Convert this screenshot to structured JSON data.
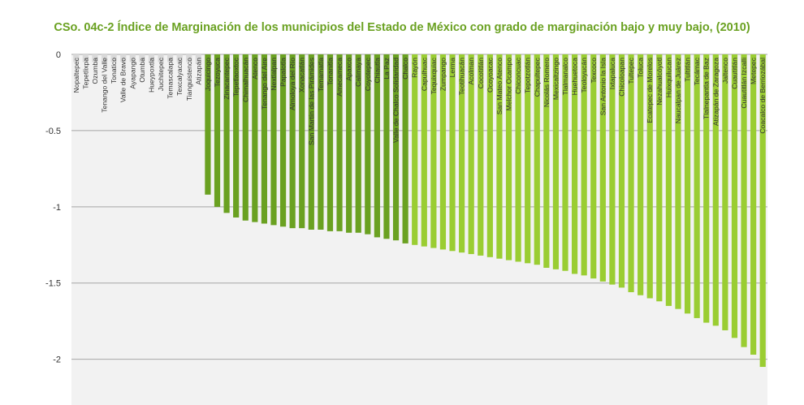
{
  "chart_data": {
    "type": "bar",
    "title": "CSo. 04c-2 Índice de Marginación de los municipios del Estado de México con grado de marginación bajo y muy bajo, (2010)",
    "xlabel": "",
    "ylabel": "",
    "ylim": [
      -2.3,
      0
    ],
    "yticks": [
      0,
      -0.5,
      -1,
      -1.5,
      -2
    ],
    "ytick_labels": [
      "0",
      "-0.5",
      "-1",
      "-1.5",
      "-2"
    ],
    "grid": true,
    "colors": {
      "muted": "#d9d9d9",
      "dark": "#6aa121",
      "light": "#9acd32",
      "background": "#f2f2f2",
      "gridline": "#a6a6a6",
      "title": "#6aa121"
    },
    "categories": [
      "Nopaltepec",
      "Tepetlixpa",
      "Ozumba",
      "Tenango del Valle",
      "Tonatico",
      "Valle de Bravo",
      "Ayapango",
      "Otumba",
      "Hueypoxtla",
      "Juchitepec",
      "Temascalapa",
      "Texcalyacac",
      "Tianguistenco",
      "Atizapán",
      "Joquicingo",
      "Tezoyuca",
      "Zinacantepec",
      "Tepetlaoxtoc",
      "Chimalhuacán",
      "Atenco",
      "Tenango del Aire",
      "Nextlalpan",
      "Papalotla",
      "Almoloya del Río",
      "Xonacatlán",
      "San Martín de las Pirámides",
      "Temamatla",
      "Tonanitla",
      "Amecameca",
      "Apaxco",
      "Calimaya",
      "Coyotepec",
      "Chiautla",
      "La Paz",
      "Valle de Chalco Solidaridad",
      "Chalco",
      "Rayón",
      "Capulhuac",
      "Tequixquiac",
      "Zumpango",
      "Lerma",
      "Teotihuacán",
      "Acolman",
      "Cocotitlán",
      "Ocoyoacac",
      "San Mateo Atenco",
      "Melchor Ocampo",
      "Chiconcuac",
      "Tepotzotlán",
      "Chapultepec",
      "Nicolás Romero",
      "Mexicaltzingo",
      "Tlalmanalco",
      "Huehuetoca",
      "Teoloyucán",
      "Texcoco",
      "San Antonio la Isla",
      "Ixtapaluca",
      "Chicoloapan",
      "Tultepec",
      "Toluca",
      "Ecatepec de Morelos",
      "Nezahualcóyotl",
      "Huixquilucan",
      "Naucalpan de Juárez",
      "Tultitlán",
      "Tecámac",
      "Tlalnepantla de Baz",
      "Atizapán de Zaragoza",
      "Jaltenco",
      "Cuautitlán",
      "Cuautitlán Izcalli",
      "Metepec",
      "Coacalco de Berriozábal"
    ],
    "values": [
      -0.05,
      -0.05,
      -0.05,
      -0.05,
      -0.05,
      -0.05,
      -0.05,
      -0.05,
      -0.05,
      -0.05,
      -0.05,
      -0.05,
      -0.05,
      -0.05,
      -0.92,
      -1.0,
      -1.04,
      -1.07,
      -1.09,
      -1.1,
      -1.11,
      -1.12,
      -1.13,
      -1.14,
      -1.14,
      -1.15,
      -1.15,
      -1.16,
      -1.16,
      -1.17,
      -1.17,
      -1.18,
      -1.2,
      -1.21,
      -1.22,
      -1.24,
      -1.25,
      -1.26,
      -1.27,
      -1.28,
      -1.29,
      -1.3,
      -1.31,
      -1.32,
      -1.33,
      -1.34,
      -1.35,
      -1.36,
      -1.37,
      -1.38,
      -1.4,
      -1.41,
      -1.42,
      -1.44,
      -1.45,
      -1.47,
      -1.49,
      -1.51,
      -1.53,
      -1.56,
      -1.58,
      -1.6,
      -1.62,
      -1.65,
      -1.67,
      -1.7,
      -1.73,
      -1.76,
      -1.78,
      -1.81,
      -1.86,
      -1.92,
      -1.97,
      -2.05
    ],
    "bar_groups": [
      "muted",
      "muted",
      "muted",
      "muted",
      "muted",
      "muted",
      "muted",
      "muted",
      "muted",
      "muted",
      "muted",
      "muted",
      "muted",
      "muted",
      "dark",
      "dark",
      "dark",
      "dark",
      "dark",
      "dark",
      "dark",
      "dark",
      "dark",
      "dark",
      "dark",
      "dark",
      "dark",
      "dark",
      "dark",
      "dark",
      "dark",
      "dark",
      "dark",
      "dark",
      "dark",
      "dark",
      "light",
      "light",
      "light",
      "light",
      "light",
      "light",
      "light",
      "light",
      "light",
      "light",
      "light",
      "light",
      "light",
      "light",
      "light",
      "light",
      "light",
      "light",
      "light",
      "light",
      "light",
      "light",
      "light",
      "light",
      "light",
      "light",
      "light",
      "light",
      "light",
      "light",
      "light",
      "light",
      "light",
      "light",
      "light",
      "light",
      "light",
      "light"
    ]
  }
}
